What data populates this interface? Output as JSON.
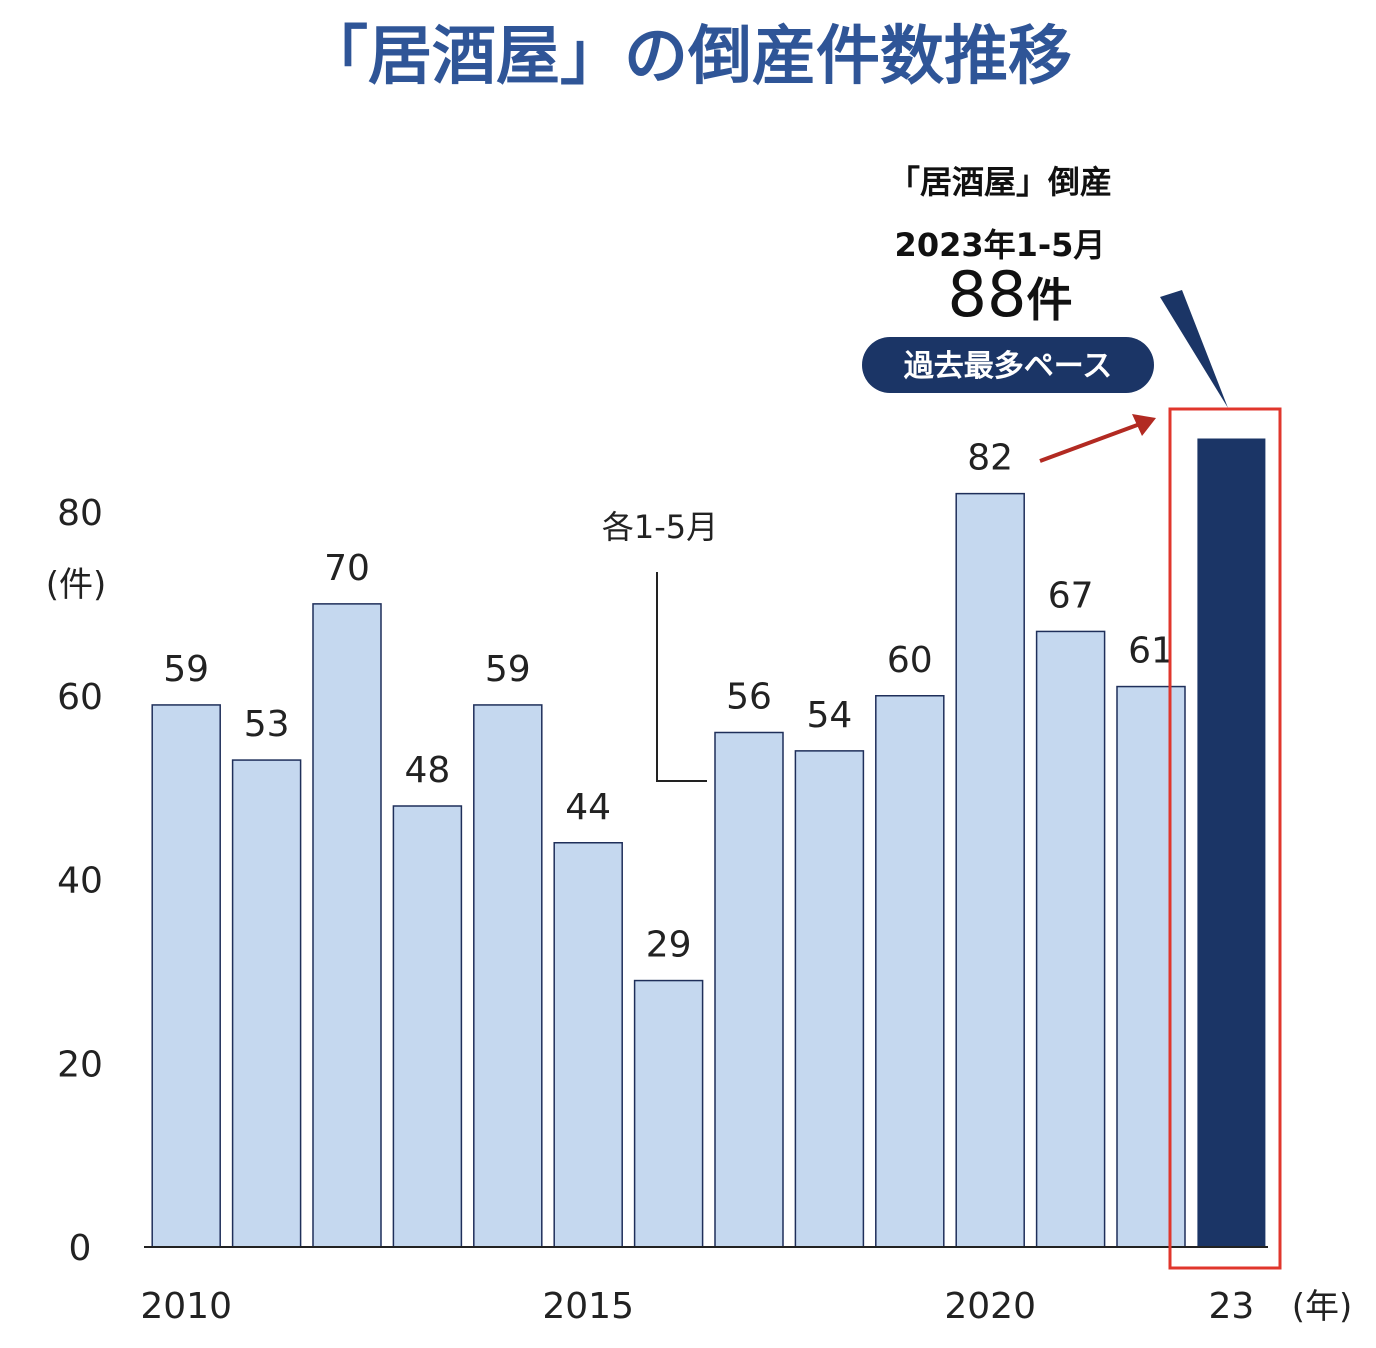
{
  "chart_data": {
    "type": "bar",
    "title": "「居酒屋」の倒産件数推移",
    "ylabel_unit": "(件)",
    "xlabel_unit": "(年)",
    "ylim": [
      0,
      80
    ],
    "yticks": [
      "0",
      "20",
      "40",
      "60",
      "80"
    ],
    "x_tick_labels": [
      {
        "index": 0,
        "label": "2010"
      },
      {
        "index": 5,
        "label": "2015"
      },
      {
        "index": 10,
        "label": "2020"
      },
      {
        "index": 13,
        "label": "23"
      }
    ],
    "categories": [
      "2010",
      "2011",
      "2012",
      "2013",
      "2014",
      "2015",
      "2016",
      "2017",
      "2018",
      "2019",
      "2020",
      "2021",
      "2022",
      "2023"
    ],
    "values": [
      59,
      53,
      70,
      48,
      59,
      44,
      29,
      56,
      54,
      60,
      82,
      67,
      61,
      88
    ],
    "value_labels": [
      "59",
      "53",
      "70",
      "48",
      "59",
      "44",
      "29",
      "56",
      "54",
      "60",
      "82",
      "67",
      "61",
      ""
    ],
    "annotation": "各1-5月",
    "highlight_index": 13,
    "colors": {
      "bar": "#c5d8ef",
      "bar_edge": "#1f2f5a",
      "highlight_bar": "#1b3566",
      "highlight_box": "#e0362c",
      "arrow": "#b22a22",
      "title": "#2f5597",
      "pill": "#1b3566"
    },
    "callout": {
      "title": "「居酒屋」倒産",
      "period": "2023年1-5月",
      "number": "88",
      "unit": "件",
      "badge": "過去最多ペース"
    }
  }
}
